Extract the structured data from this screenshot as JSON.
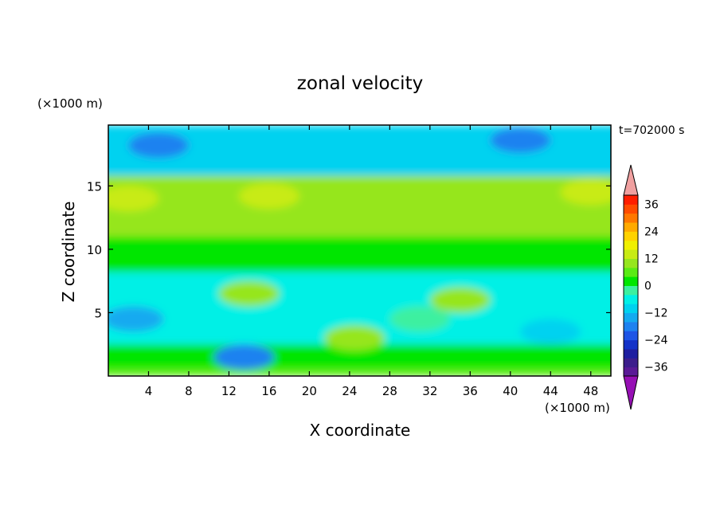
{
  "chart_data": {
    "type": "heatmap",
    "title": "zonal velocity",
    "xlabel": "X coordinate",
    "ylabel": "Z coordinate",
    "x_unit": "(×1000 m)",
    "y_unit": "(×1000 m)",
    "time_label": "t=702000 s",
    "xlim": [
      0,
      50
    ],
    "ylim": [
      0,
      19.8
    ],
    "xticks": [
      4,
      8,
      12,
      16,
      20,
      24,
      28,
      32,
      36,
      40,
      44,
      48
    ],
    "yticks": [
      5,
      10,
      15
    ],
    "colorbar": {
      "levels": [
        -40,
        -36,
        -32,
        -28,
        -24,
        -20,
        -16,
        -12,
        -8,
        -4,
        0,
        4,
        8,
        12,
        16,
        20,
        24,
        28,
        32,
        36,
        40
      ],
      "tick_labels": [
        "36",
        "24",
        "12",
        "0",
        "−12",
        "−24",
        "−36"
      ],
      "tick_values": [
        36,
        24,
        12,
        0,
        -12,
        -24,
        -36
      ],
      "colors": [
        "#5a1a96",
        "#3c1e8c",
        "#1e1ea0",
        "#1432c8",
        "#1e55e6",
        "#1e82f0",
        "#14aaf0",
        "#00d2f0",
        "#00f0e6",
        "#3cf0a0",
        "#00e600",
        "#5aeb14",
        "#96e61e",
        "#c8eb14",
        "#f0f000",
        "#ffd200",
        "#ffaa00",
        "#ff7800",
        "#ff4b00",
        "#ff1e00"
      ],
      "extend_low_color": "#9610b4",
      "extend_high_color": "#f0a0a0"
    },
    "field_bands": [
      {
        "z_range": [
          0,
          0.6
        ],
        "value_approx": 6
      },
      {
        "z_range": [
          0.6,
          2.5
        ],
        "value_approx": 0
      },
      {
        "z_range": [
          2.5,
          8.2
        ],
        "value_approx": -8
      },
      {
        "z_range": [
          8.2,
          11
        ],
        "value_approx": 2
      },
      {
        "z_range": [
          11,
          15.8
        ],
        "value_approx": 10
      },
      {
        "z_range": [
          15.8,
          19.8
        ],
        "value_approx": -12
      }
    ],
    "features": [
      {
        "x": 2.5,
        "z": 4.5,
        "value_approx": -14
      },
      {
        "x": 14,
        "z": 6.5,
        "value_approx": 8
      },
      {
        "x": 24.5,
        "z": 3,
        "value_approx": 8
      },
      {
        "x": 35,
        "z": 6,
        "value_approx": 10
      },
      {
        "x": 13.5,
        "z": 1.5,
        "value_approx": -18
      },
      {
        "x": 5,
        "z": 18.2,
        "value_approx": -20
      },
      {
        "x": 41,
        "z": 18.6,
        "value_approx": -20
      },
      {
        "x": 16,
        "z": 14.2,
        "value_approx": 14
      },
      {
        "x": 2,
        "z": 14,
        "value_approx": 14
      },
      {
        "x": 48,
        "z": 14.5,
        "value_approx": 14
      },
      {
        "x": 31,
        "z": 4.5,
        "value_approx": -2
      },
      {
        "x": 44,
        "z": 3.5,
        "value_approx": -10
      }
    ]
  }
}
